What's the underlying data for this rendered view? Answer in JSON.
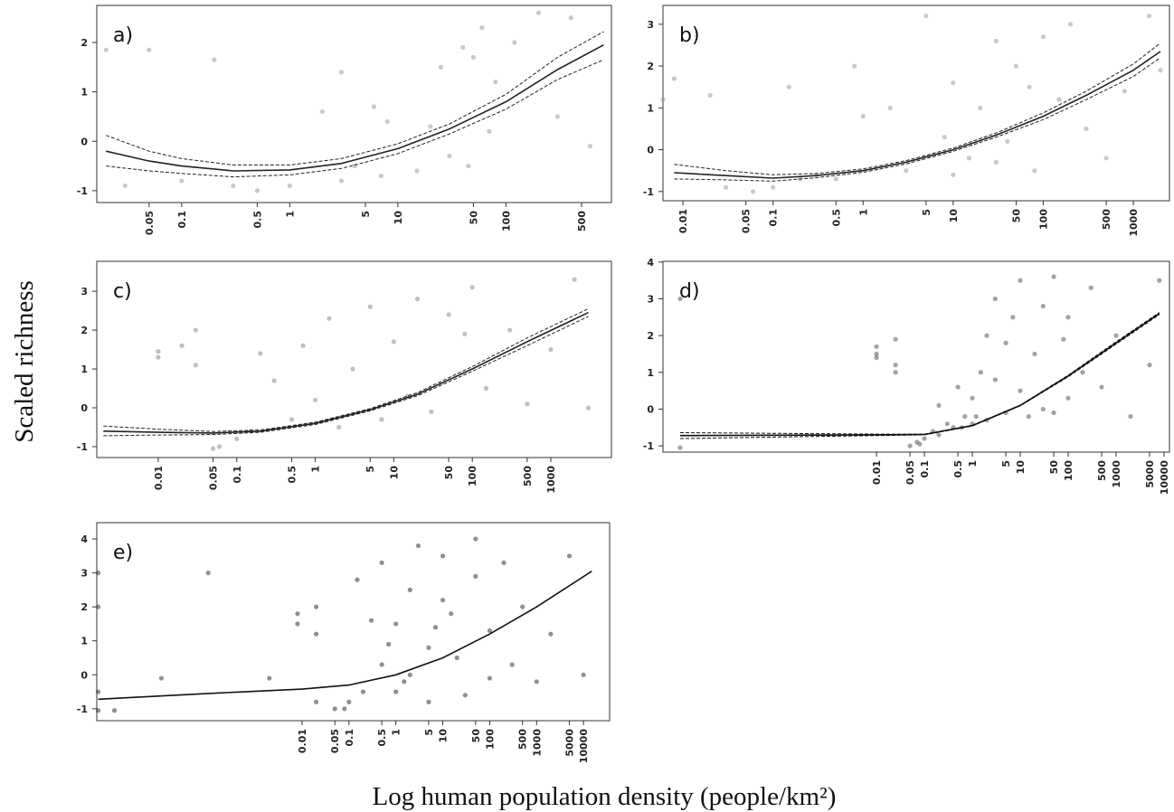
{
  "ylabel": "Scaled richness",
  "xlabel": "Log human population density (people/km²)",
  "chart_data": [
    {
      "type": "scatter",
      "title": "a)",
      "log_x": true,
      "point_color": "#9a9a9a",
      "line_color": "#222222",
      "xlim": [
        0.0164,
        945
      ],
      "ylim": [
        -1.24,
        2.75
      ],
      "xticks": [
        0.05,
        0.1,
        0.5,
        1,
        5,
        10,
        50,
        100,
        500
      ],
      "yticks": [
        -1,
        0,
        1,
        2
      ],
      "points": {
        "x": [
          0.02,
          0.05,
          0.2,
          0.03,
          0.1,
          0.3,
          0.5,
          1,
          2,
          3,
          4,
          6,
          8,
          15,
          20,
          25,
          30,
          40,
          45,
          50,
          60,
          70,
          80,
          120,
          200,
          300,
          400,
          600,
          3,
          7
        ],
        "y": [
          1.85,
          1.85,
          1.65,
          -0.9,
          -0.8,
          -0.9,
          -1,
          -0.9,
          0.6,
          1.4,
          -0.5,
          0.7,
          0.4,
          -0.6,
          0.3,
          1.5,
          -0.3,
          1.9,
          -0.5,
          1.7,
          2.3,
          0.2,
          1.2,
          2.0,
          2.6,
          0.5,
          2.5,
          -0.1,
          -0.8,
          -0.7
        ]
      },
      "fit": {
        "x": [
          0.02,
          0.05,
          0.1,
          0.3,
          1,
          3,
          10,
          30,
          100,
          300,
          800
        ],
        "y": [
          -0.2,
          -0.4,
          -0.5,
          -0.6,
          -0.58,
          -0.45,
          -0.15,
          0.25,
          0.8,
          1.45,
          1.95
        ],
        "lower": [
          -0.5,
          -0.6,
          -0.65,
          -0.72,
          -0.68,
          -0.55,
          -0.25,
          0.15,
          0.65,
          1.25,
          1.65
        ],
        "upper": [
          0.12,
          -0.2,
          -0.35,
          -0.48,
          -0.48,
          -0.35,
          -0.05,
          0.35,
          0.95,
          1.7,
          2.22
        ]
      }
    },
    {
      "type": "scatter",
      "title": "b)",
      "log_x": true,
      "point_color": "#9a9a9a",
      "line_color": "#222222",
      "xlim": [
        0.006,
        2520
      ],
      "ylim": [
        -1.22,
        3.45
      ],
      "xticks": [
        0.01,
        0.05,
        0.1,
        0.5,
        1,
        5,
        10,
        50,
        100,
        500,
        1000
      ],
      "yticks": [
        -1,
        0,
        1,
        2,
        3
      ],
      "points": {
        "x": [
          0.006,
          0.008,
          0.02,
          0.03,
          0.06,
          0.1,
          0.15,
          0.2,
          0.3,
          0.5,
          0.8,
          1,
          2,
          3,
          5,
          8,
          10,
          15,
          20,
          30,
          40,
          50,
          70,
          100,
          150,
          200,
          300,
          500,
          800,
          1500,
          2000,
          10,
          30,
          80
        ],
        "y": [
          1.2,
          1.7,
          1.3,
          -0.9,
          -1,
          -0.9,
          1.5,
          -0.7,
          -0.6,
          -0.7,
          2.0,
          0.8,
          1.0,
          -0.5,
          3.2,
          0.3,
          1.6,
          -0.2,
          1.0,
          2.6,
          0.2,
          2.0,
          1.5,
          2.7,
          1.2,
          3.0,
          0.5,
          -0.2,
          1.4,
          3.2,
          1.9,
          -0.6,
          -0.3,
          -0.5
        ]
      },
      "fit": {
        "x": [
          0.008,
          0.03,
          0.1,
          0.3,
          1,
          3,
          10,
          30,
          100,
          300,
          1000,
          2000
        ],
        "y": [
          -0.55,
          -0.62,
          -0.68,
          -0.62,
          -0.5,
          -0.3,
          0.0,
          0.35,
          0.8,
          1.3,
          1.9,
          2.35
        ],
        "lower": [
          -0.7,
          -0.72,
          -0.75,
          -0.67,
          -0.54,
          -0.34,
          -0.04,
          0.3,
          0.72,
          1.2,
          1.75,
          2.2
        ],
        "upper": [
          -0.35,
          -0.5,
          -0.6,
          -0.57,
          -0.46,
          -0.26,
          0.04,
          0.4,
          0.88,
          1.4,
          2.05,
          2.55
        ]
      }
    },
    {
      "type": "scatter",
      "title": "c)",
      "log_x": true,
      "point_color": "#8a8a8a",
      "line_color": "#222222",
      "xlim": [
        0.00165,
        5910
      ],
      "ylim": [
        -1.28,
        3.77
      ],
      "xticks": [
        0.01,
        0.05,
        0.1,
        0.5,
        1,
        5,
        10,
        50,
        100,
        500,
        1000
      ],
      "yticks": [
        -1,
        0,
        1,
        2,
        3
      ],
      "points": {
        "x": [
          0.01,
          0.01,
          0.02,
          0.03,
          0.03,
          0.05,
          0.06,
          0.1,
          0.15,
          0.2,
          0.3,
          0.5,
          0.7,
          1,
          1.5,
          2,
          3,
          5,
          7,
          10,
          15,
          20,
          30,
          50,
          80,
          100,
          150,
          300,
          500,
          1000,
          2000,
          3000
        ],
        "y": [
          1.3,
          1.45,
          1.6,
          1.1,
          2.0,
          -1.05,
          -1.0,
          -0.8,
          -0.6,
          1.4,
          0.7,
          -0.3,
          1.6,
          0.2,
          2.3,
          -0.5,
          1.0,
          2.6,
          -0.3,
          1.7,
          0.3,
          2.8,
          -0.1,
          2.4,
          1.9,
          3.1,
          0.5,
          2.0,
          0.1,
          1.5,
          3.3,
          0.0
        ]
      },
      "fit": {
        "x": [
          0.002,
          0.01,
          0.05,
          0.2,
          1,
          5,
          20,
          100,
          500,
          3000
        ],
        "y": [
          -0.6,
          -0.63,
          -0.65,
          -0.6,
          -0.4,
          -0.05,
          0.35,
          1.0,
          1.7,
          2.45
        ],
        "lower": [
          -0.72,
          -0.7,
          -0.69,
          -0.63,
          -0.43,
          -0.08,
          0.31,
          0.94,
          1.6,
          2.35
        ],
        "upper": [
          -0.47,
          -0.55,
          -0.61,
          -0.57,
          -0.37,
          -0.02,
          0.39,
          1.06,
          1.8,
          2.55
        ]
      }
    },
    {
      "type": "scatter",
      "title": "d)",
      "log_x": true,
      "point_color": "#555555",
      "line_color": "#111111",
      "xlim": [
        3.5e-07,
        13000
      ],
      "ylim": [
        -1.17,
        4.02
      ],
      "xticks": [
        0.01,
        0.05,
        0.1,
        0.5,
        1,
        5,
        10,
        50,
        100,
        500,
        1000,
        5000,
        10000
      ],
      "yticks": [
        -1,
        0,
        1,
        2,
        3,
        4
      ],
      "points": {
        "x": [
          8e-07,
          8e-07,
          0.01,
          0.01,
          0.01,
          0.025,
          0.025,
          0.025,
          0.05,
          0.07,
          0.1,
          0.15,
          0.2,
          0.3,
          0.4,
          0.5,
          0.7,
          1,
          1,
          1.5,
          2,
          2,
          3,
          3,
          5,
          5,
          7,
          10,
          10,
          15,
          20,
          30,
          30,
          50,
          50,
          80,
          100,
          100,
          200,
          300,
          500,
          1000,
          2000,
          5000,
          8000,
          0.08,
          0.2,
          0.6,
          1.2
        ],
        "y": [
          -1.05,
          3.0,
          1.5,
          1.7,
          1.4,
          1.2,
          1.9,
          1.0,
          -1,
          -0.9,
          -0.8,
          -0.6,
          0.1,
          -0.4,
          -0.5,
          0.6,
          -0.2,
          0.3,
          -0.4,
          1.0,
          2.0,
          -0.3,
          0.8,
          3.0,
          -0.1,
          1.8,
          2.5,
          0.5,
          3.5,
          -0.2,
          1.5,
          2.8,
          0.0,
          3.6,
          -0.1,
          1.9,
          2.5,
          0.3,
          1.0,
          3.3,
          0.6,
          2.0,
          -0.2,
          1.2,
          3.5,
          -0.95,
          -0.7,
          -0.5,
          -0.2
        ]
      },
      "fit": {
        "x": [
          8e-07,
          0.0001,
          0.01,
          0.1,
          1,
          10,
          100,
          1000,
          8000
        ],
        "y": [
          -0.72,
          -0.71,
          -0.7,
          -0.69,
          -0.45,
          0.1,
          0.9,
          1.8,
          2.6
        ],
        "lower": [
          -0.8,
          -0.76,
          -0.72,
          -0.7,
          -0.46,
          0.09,
          0.88,
          1.77,
          2.57
        ],
        "upper": [
          -0.64,
          -0.66,
          -0.68,
          -0.68,
          -0.44,
          0.11,
          0.92,
          1.83,
          2.63
        ]
      }
    },
    {
      "type": "scatter",
      "title": "e)",
      "log_x": true,
      "point_color": "#333333",
      "line_color": "#111111",
      "xlim": [
        4.2e-07,
        36000
      ],
      "ylim": [
        -1.35,
        4.48
      ],
      "xticks": [
        0.01,
        0.05,
        0.1,
        0.5,
        1,
        5,
        10,
        50,
        100,
        500,
        1000,
        5000,
        10000
      ],
      "yticks": [
        -1,
        0,
        1,
        2,
        3,
        4
      ],
      "points": {
        "x": [
          4.5e-07,
          4.5e-07,
          4.5e-07,
          4.5e-07,
          1e-06,
          0.008,
          0.008,
          0.02,
          0.02,
          0.02,
          0.05,
          0.08,
          0.1,
          0.15,
          0.2,
          0.3,
          0.5,
          0.5,
          1,
          1,
          2,
          2,
          3,
          5,
          5,
          10,
          10,
          20,
          30,
          50,
          50,
          100,
          100,
          200,
          300,
          500,
          1000,
          2000,
          5000,
          10000,
          0.7,
          1.5,
          7,
          15,
          0.002,
          0.0001,
          1e-05
        ],
        "y": [
          3.0,
          2.0,
          -0.5,
          -1.05,
          -1.05,
          1.8,
          1.5,
          2.0,
          1.2,
          -0.8,
          -1.0,
          -1.0,
          -0.8,
          2.8,
          -0.5,
          1.6,
          0.3,
          3.3,
          -0.5,
          1.5,
          2.5,
          0.0,
          3.8,
          0.8,
          -0.8,
          2.2,
          3.5,
          0.5,
          -0.6,
          2.9,
          4.0,
          1.3,
          -0.1,
          3.3,
          0.3,
          2.0,
          -0.2,
          1.2,
          3.5,
          0.0,
          0.9,
          -0.2,
          1.4,
          1.8,
          -0.1,
          3.0,
          -0.1
        ]
      },
      "fit": {
        "x": [
          4.5e-07,
          0.0001,
          0.01,
          0.1,
          1,
          10,
          100,
          1000,
          15000
        ],
        "y": [
          -0.72,
          -0.55,
          -0.42,
          -0.3,
          0.0,
          0.5,
          1.2,
          2.0,
          3.05
        ]
      }
    }
  ]
}
